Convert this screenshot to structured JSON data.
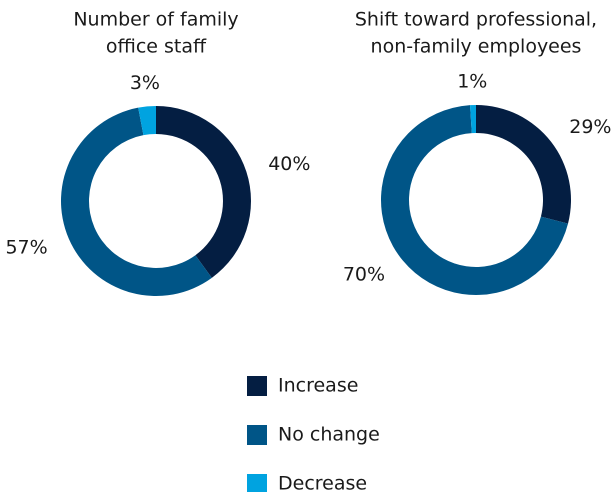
{
  "chart_data": [
    {
      "type": "donut",
      "title": [
        "Number of family",
        "office staff"
      ],
      "categories": [
        "Increase",
        "No change",
        "Decrease"
      ],
      "values": [
        40,
        57,
        3
      ],
      "value_labels": [
        "40%",
        "57%",
        "3%"
      ],
      "colors": [
        "#041e42",
        "#005587",
        "#00a3e0"
      ]
    },
    {
      "type": "donut",
      "title": [
        "Shift toward professional,",
        "non-family employees"
      ],
      "categories": [
        "Increase",
        "No change",
        "Decrease"
      ],
      "values": [
        29,
        70,
        1
      ],
      "value_labels": [
        "29%",
        "70%",
        "1%"
      ],
      "colors": [
        "#041e42",
        "#005587",
        "#00a3e0"
      ]
    }
  ]
}
